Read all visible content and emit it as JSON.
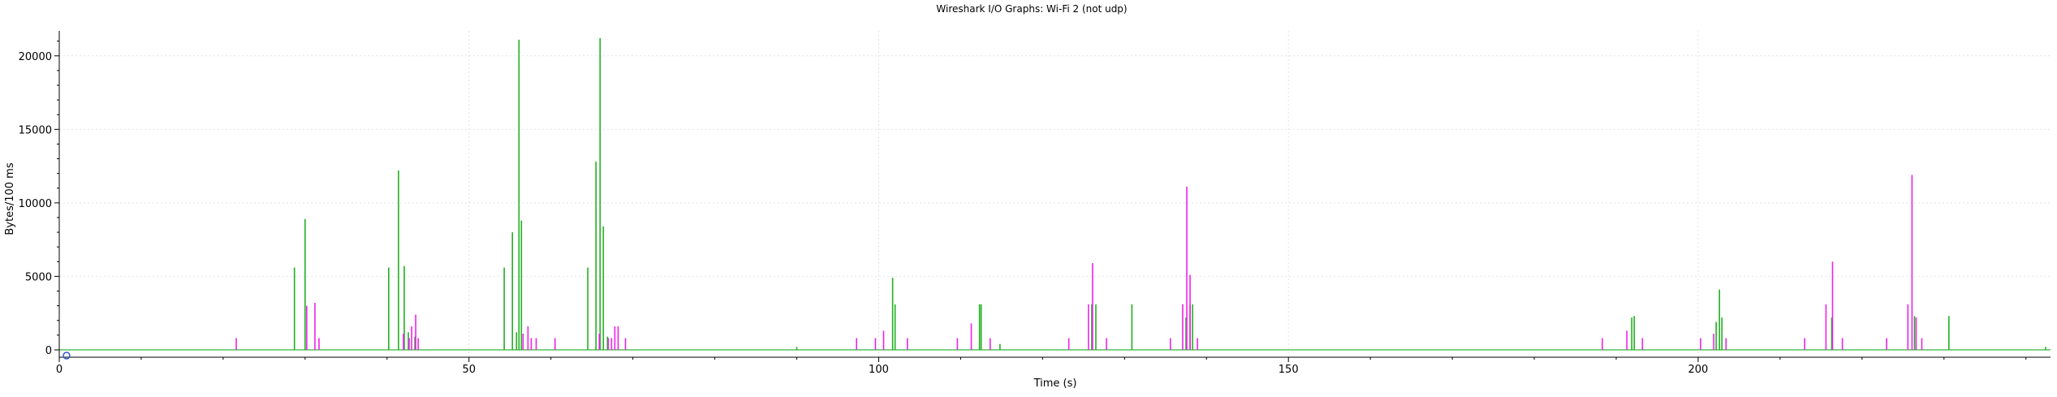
{
  "window_title": "Wireshark I/O Graphs: Wi-Fi 2 (not udp)",
  "chart_data": {
    "type": "line",
    "title": "Wireshark I/O Graphs: Wi-Fi 2 (not udp)",
    "xlabel": "Time (s)",
    "ylabel": "Bytes/100 ms",
    "xlim": [
      0,
      243
    ],
    "ylim": [
      -500,
      21700
    ],
    "grid": true,
    "x_ticks": [
      0,
      50,
      100,
      150,
      200
    ],
    "y_ticks": [
      0,
      5000,
      10000,
      15000,
      20000
    ],
    "x_tick_labels": [
      "0",
      "50",
      "100",
      "150",
      "200"
    ],
    "y_tick_labels": [
      "0",
      "5000",
      "10000",
      "15000",
      "20000"
    ],
    "series": [
      {
        "color": "#22b022",
        "values": [
          [
            28.7,
            5600
          ],
          [
            30.0,
            8900
          ],
          [
            40.2,
            5600
          ],
          [
            41.4,
            12200
          ],
          [
            42.1,
            5700
          ],
          [
            42.6,
            1200
          ],
          [
            43.4,
            900
          ],
          [
            54.3,
            5600
          ],
          [
            55.3,
            8000
          ],
          [
            55.8,
            1200
          ],
          [
            56.1,
            21100
          ],
          [
            56.4,
            8800
          ],
          [
            64.5,
            5600
          ],
          [
            65.5,
            12800
          ],
          [
            66.0,
            21200
          ],
          [
            66.4,
            8400
          ],
          [
            66.9,
            900
          ],
          [
            90.0,
            200
          ],
          [
            101.7,
            4900
          ],
          [
            102.0,
            3100
          ],
          [
            112.3,
            3100
          ],
          [
            112.5,
            3100
          ],
          [
            114.8,
            400
          ],
          [
            126.0,
            3100
          ],
          [
            126.5,
            3100
          ],
          [
            130.9,
            3100
          ],
          [
            137.5,
            2200
          ],
          [
            138.0,
            3100
          ],
          [
            138.3,
            3100
          ],
          [
            191.9,
            2200
          ],
          [
            192.2,
            2300
          ],
          [
            202.2,
            1900
          ],
          [
            202.6,
            4100
          ],
          [
            202.9,
            2200
          ],
          [
            216.3,
            2200
          ],
          [
            226.4,
            2300
          ],
          [
            230.6,
            2300
          ],
          [
            242.4,
            200
          ]
        ]
      },
      {
        "color": "#ee22ee",
        "values": [
          [
            21.6,
            800
          ],
          [
            30.2,
            3000
          ],
          [
            31.2,
            3200
          ],
          [
            31.7,
            800
          ],
          [
            42.0,
            1100
          ],
          [
            42.7,
            800
          ],
          [
            43.0,
            1600
          ],
          [
            43.5,
            2400
          ],
          [
            43.8,
            800
          ],
          [
            56.6,
            1100
          ],
          [
            57.2,
            1600
          ],
          [
            57.6,
            800
          ],
          [
            58.2,
            800
          ],
          [
            60.5,
            800
          ],
          [
            65.9,
            1100
          ],
          [
            67.0,
            800
          ],
          [
            67.4,
            800
          ],
          [
            67.8,
            1600
          ],
          [
            68.2,
            1600
          ],
          [
            69.1,
            800
          ],
          [
            97.3,
            800
          ],
          [
            99.6,
            800
          ],
          [
            100.6,
            1300
          ],
          [
            103.5,
            800
          ],
          [
            109.6,
            800
          ],
          [
            111.3,
            1800
          ],
          [
            113.6,
            800
          ],
          [
            123.2,
            800
          ],
          [
            125.6,
            3100
          ],
          [
            126.1,
            5900
          ],
          [
            127.8,
            800
          ],
          [
            135.6,
            800
          ],
          [
            137.1,
            3100
          ],
          [
            137.6,
            11100
          ],
          [
            138.0,
            5100
          ],
          [
            138.9,
            800
          ],
          [
            188.3,
            800
          ],
          [
            191.3,
            1300
          ],
          [
            193.2,
            800
          ],
          [
            200.3,
            800
          ],
          [
            201.9,
            1100
          ],
          [
            203.4,
            800
          ],
          [
            213.0,
            800
          ],
          [
            215.6,
            3100
          ],
          [
            216.4,
            6000
          ],
          [
            217.6,
            800
          ],
          [
            223.0,
            800
          ],
          [
            225.6,
            3100
          ],
          [
            226.1,
            11900
          ],
          [
            226.6,
            2200
          ],
          [
            227.3,
            800
          ]
        ]
      }
    ]
  }
}
